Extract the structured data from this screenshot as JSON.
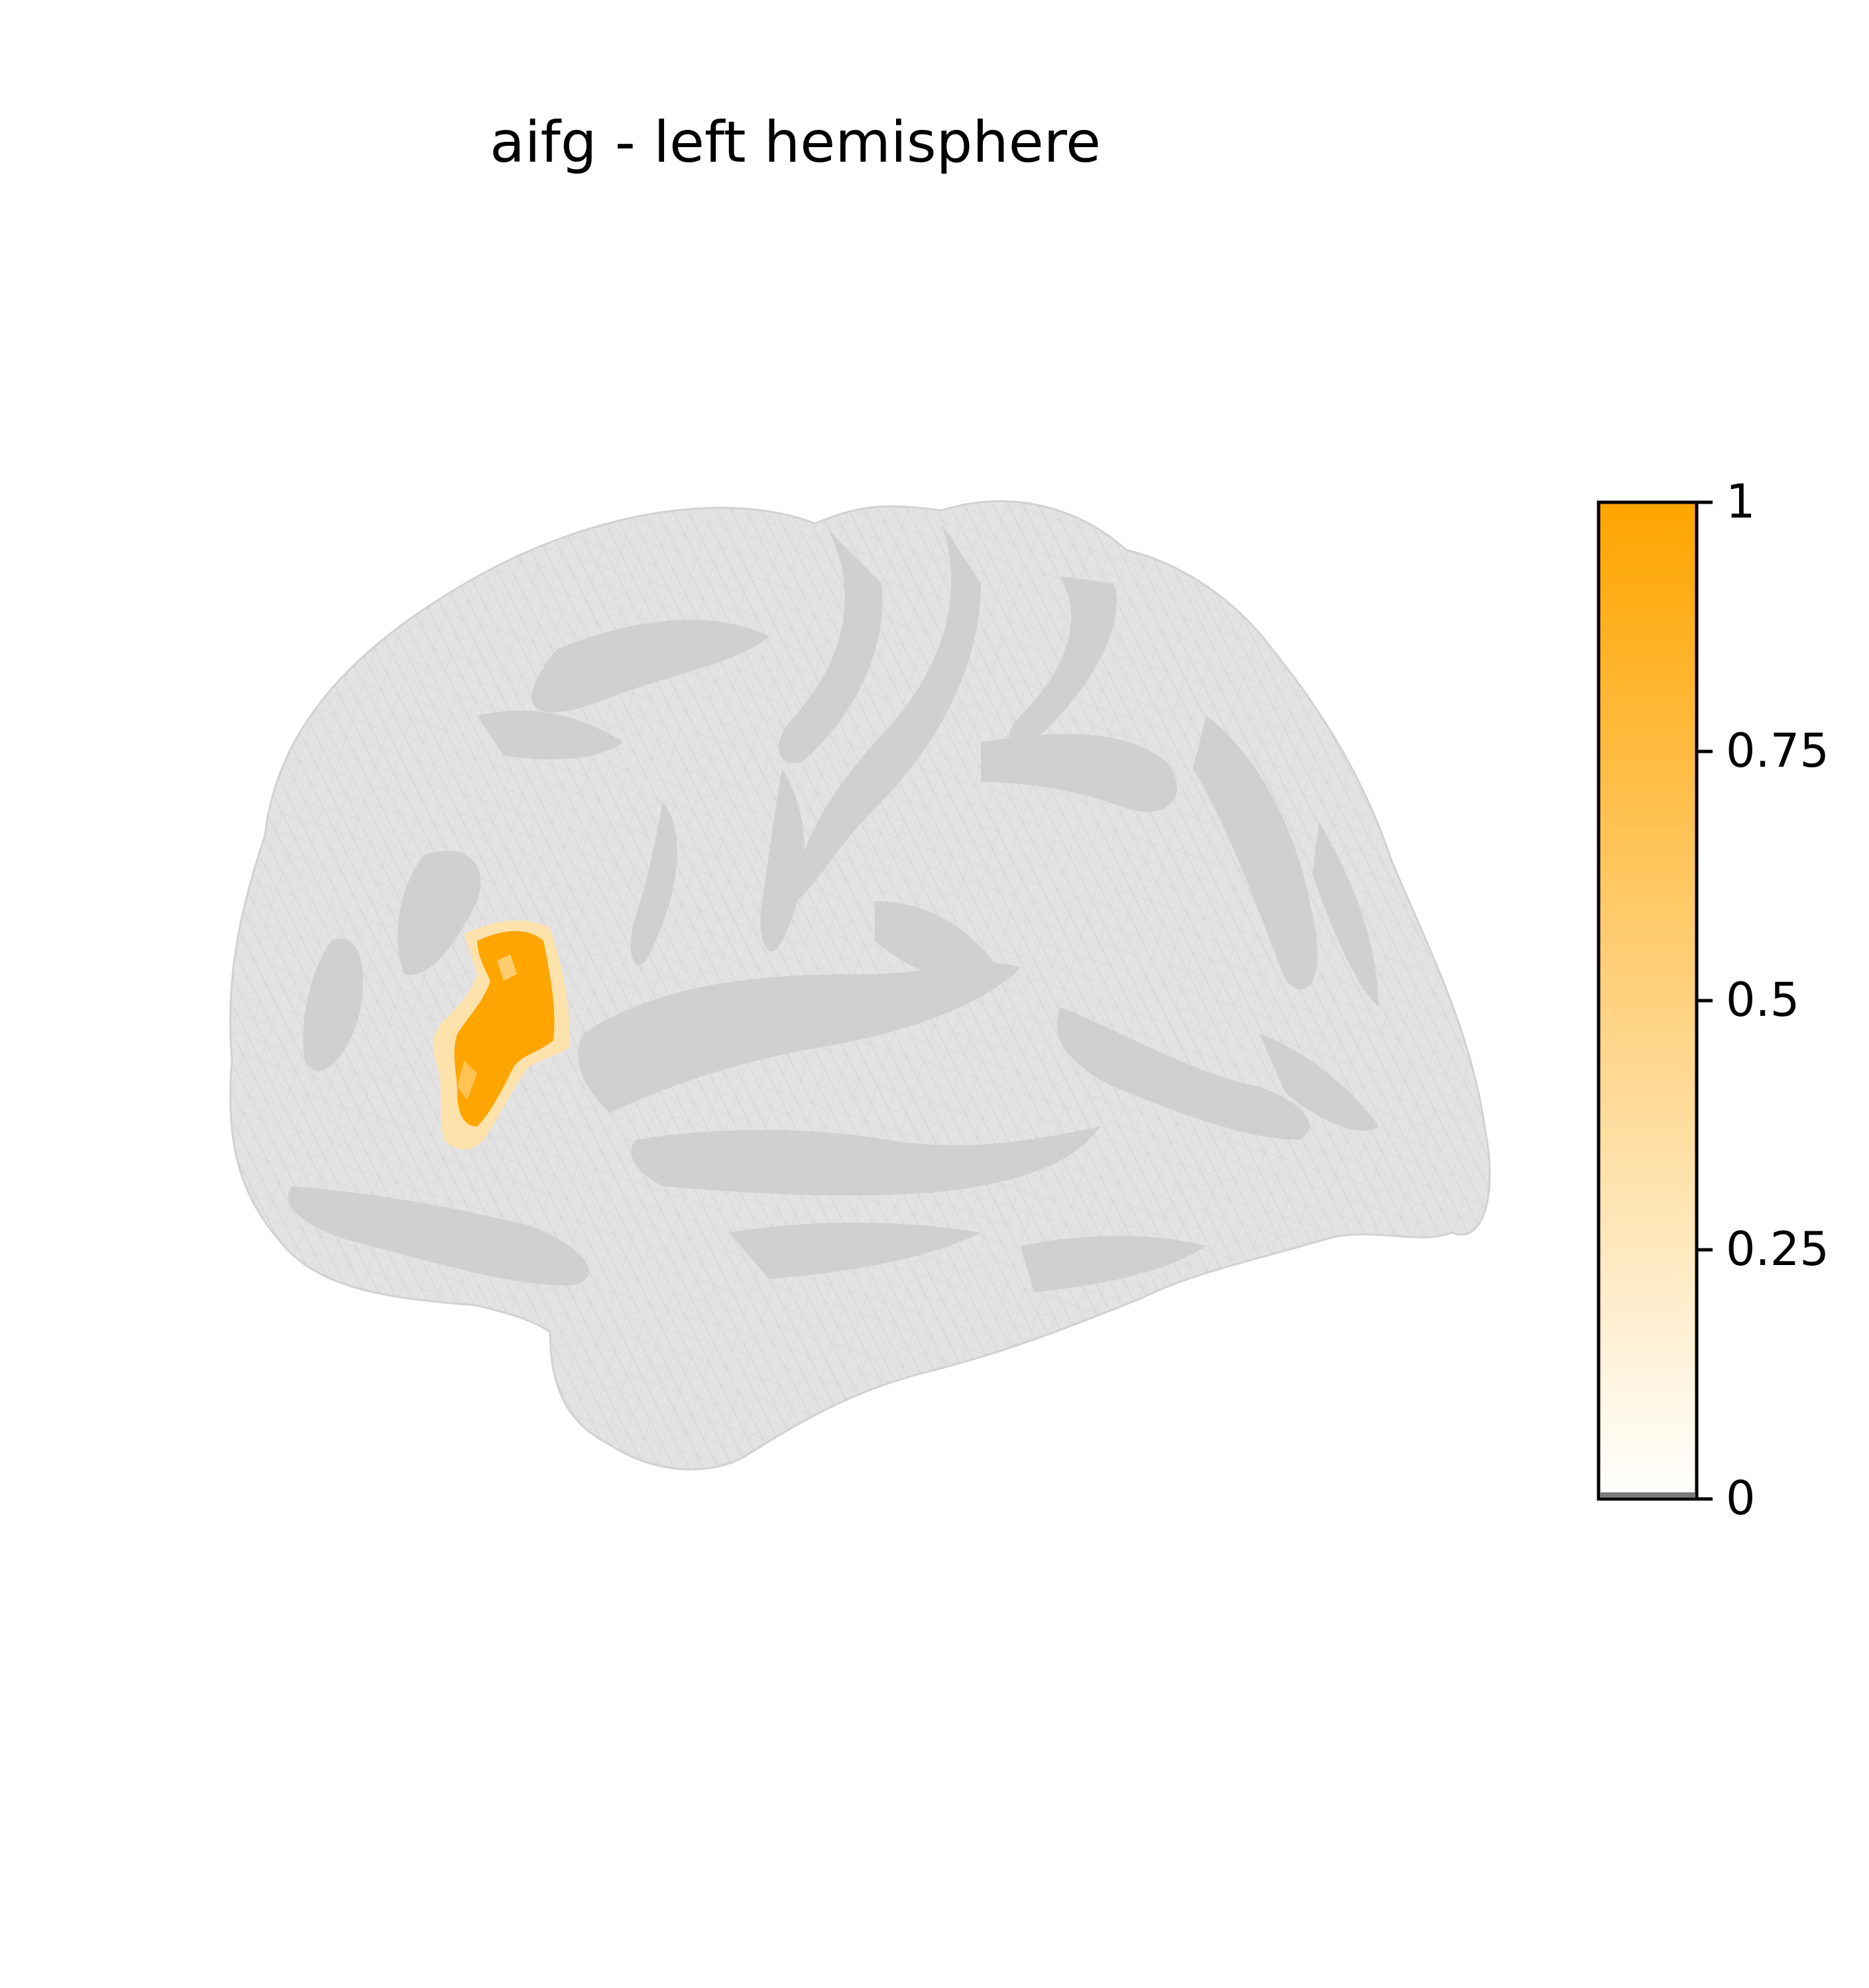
{
  "figure": {
    "title": "aifg - left hemisphere"
  },
  "surface": {
    "view": "lateral",
    "hemisphere": "left",
    "base_color": "#e2e2e2",
    "sulcus_color": "#cfcfcf",
    "mesh_line_color": "#bdbdbd",
    "highlight_region": {
      "color": "#ffa500",
      "value": 1
    }
  },
  "colorbar": {
    "vmin": 0,
    "vmax": 1,
    "color_low": "#ffffff",
    "color_high": "#ffa500",
    "ticks": [
      {
        "value": 0,
        "label": "0"
      },
      {
        "value": 0.25,
        "label": "0.25"
      },
      {
        "value": 0.5,
        "label": "0.5"
      },
      {
        "value": 0.75,
        "label": "0.75"
      },
      {
        "value": 1,
        "label": "1"
      }
    ]
  }
}
